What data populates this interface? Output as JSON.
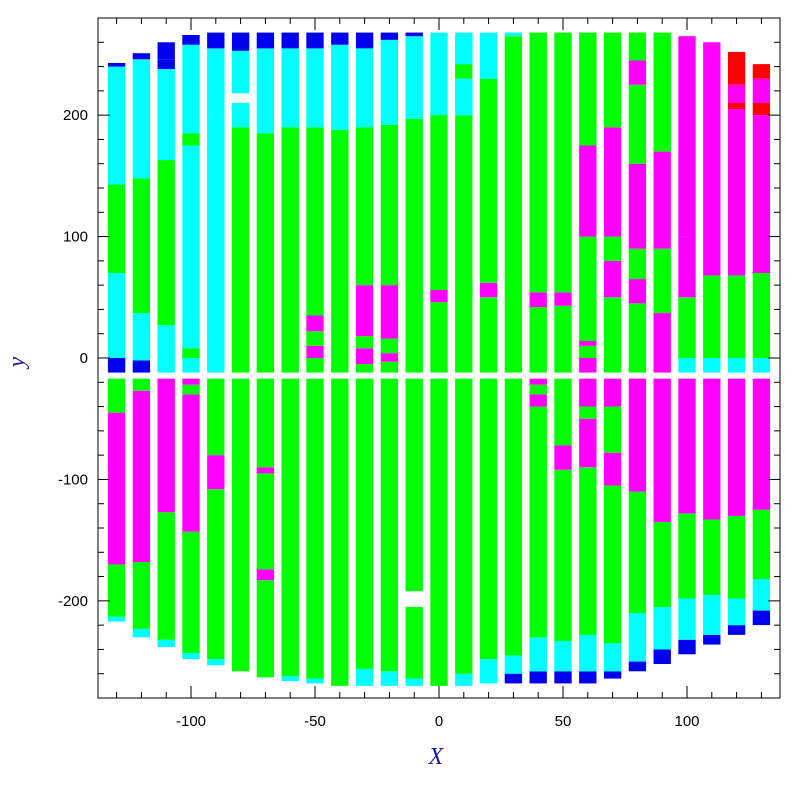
{
  "chart_data": {
    "type": "heatmap",
    "title": "",
    "xlabel": "X",
    "ylabel": "y",
    "xlim": [
      -137.5,
      137.5
    ],
    "ylim": [
      -280,
      280
    ],
    "xticks": [
      -100,
      -50,
      0,
      50,
      100
    ],
    "yticks": [
      -200,
      -100,
      0,
      100,
      200
    ],
    "grid": false,
    "colors": {
      "cyan": "#00ffff",
      "green": "#00ff00",
      "magenta": "#ff00ff",
      "blue": "#0000ee",
      "red": "#ff0000"
    },
    "strip_width": 7,
    "gap_band": [
      -17,
      -12
    ],
    "columns": [
      {
        "x": -130,
        "segments": [
          [
            -217,
            -213,
            "cyan"
          ],
          [
            -213,
            -170,
            "green"
          ],
          [
            -170,
            -45,
            "magenta"
          ],
          [
            -45,
            -17,
            "green"
          ],
          [
            -12,
            0,
            "blue"
          ],
          [
            0,
            70,
            "cyan"
          ],
          [
            70,
            143,
            "green"
          ],
          [
            143,
            240,
            "cyan"
          ],
          [
            240,
            243,
            "blue"
          ]
        ]
      },
      {
        "x": -120,
        "segments": [
          [
            -230,
            -223,
            "cyan"
          ],
          [
            -223,
            -168,
            "green"
          ],
          [
            -168,
            -27,
            "magenta"
          ],
          [
            -27,
            -17,
            "green"
          ],
          [
            -12,
            -2,
            "blue"
          ],
          [
            -2,
            37,
            "cyan"
          ],
          [
            37,
            148,
            "green"
          ],
          [
            148,
            246,
            "cyan"
          ],
          [
            246,
            251,
            "blue"
          ]
        ]
      },
      {
        "x": -110,
        "segments": [
          [
            -238,
            -232,
            "cyan"
          ],
          [
            -232,
            -127,
            "green"
          ],
          [
            -127,
            -17,
            "magenta"
          ],
          [
            -12,
            0,
            "cyan"
          ],
          [
            0,
            27,
            "cyan"
          ],
          [
            27,
            163,
            "green"
          ],
          [
            163,
            238,
            "cyan"
          ],
          [
            238,
            246,
            "blue"
          ],
          [
            246,
            260,
            "blue"
          ]
        ]
      },
      {
        "x": -100,
        "segments": [
          [
            -248,
            -243,
            "cyan"
          ],
          [
            -243,
            -143,
            "green"
          ],
          [
            -143,
            -30,
            "magenta"
          ],
          [
            -30,
            -22,
            "green"
          ],
          [
            -22,
            -17,
            "magenta"
          ],
          [
            -12,
            0,
            "cyan"
          ],
          [
            0,
            8,
            "green"
          ],
          [
            8,
            175,
            "cyan"
          ],
          [
            175,
            185,
            "green"
          ],
          [
            185,
            258,
            "cyan"
          ],
          [
            258,
            266,
            "blue"
          ]
        ]
      },
      {
        "x": -90,
        "segments": [
          [
            -253,
            -248,
            "cyan"
          ],
          [
            -248,
            -108,
            "green"
          ],
          [
            -108,
            -80,
            "magenta"
          ],
          [
            -80,
            -17,
            "green"
          ],
          [
            -12,
            200,
            "cyan"
          ],
          [
            200,
            255,
            "cyan"
          ],
          [
            255,
            268,
            "blue"
          ]
        ]
      },
      {
        "x": -80,
        "segments": [
          [
            -258,
            -17,
            "green"
          ],
          [
            -12,
            190,
            "green"
          ],
          [
            190,
            210,
            "cyan"
          ],
          [
            218,
            253,
            "cyan"
          ],
          [
            253,
            268,
            "blue"
          ]
        ]
      },
      {
        "x": -70,
        "segments": [
          [
            -263,
            -183,
            "green"
          ],
          [
            -183,
            -174,
            "magenta"
          ],
          [
            -174,
            -95,
            "green"
          ],
          [
            -95,
            -90,
            "magenta"
          ],
          [
            -90,
            -17,
            "green"
          ],
          [
            -12,
            185,
            "green"
          ],
          [
            185,
            255,
            "cyan"
          ],
          [
            255,
            268,
            "blue"
          ]
        ]
      },
      {
        "x": -60,
        "segments": [
          [
            -266,
            -262,
            "cyan"
          ],
          [
            -262,
            -17,
            "green"
          ],
          [
            -12,
            190,
            "green"
          ],
          [
            190,
            255,
            "cyan"
          ],
          [
            255,
            268,
            "blue"
          ]
        ]
      },
      {
        "x": -50,
        "segments": [
          [
            -268,
            -264,
            "cyan"
          ],
          [
            -264,
            -17,
            "green"
          ],
          [
            -12,
            0,
            "green"
          ],
          [
            0,
            10,
            "magenta"
          ],
          [
            10,
            22,
            "green"
          ],
          [
            22,
            35,
            "magenta"
          ],
          [
            35,
            190,
            "green"
          ],
          [
            190,
            255,
            "cyan"
          ],
          [
            255,
            268,
            "blue"
          ]
        ]
      },
      {
        "x": -40,
        "segments": [
          [
            -270,
            -17,
            "green"
          ],
          [
            -12,
            188,
            "green"
          ],
          [
            188,
            258,
            "cyan"
          ],
          [
            258,
            268,
            "blue"
          ]
        ]
      },
      {
        "x": -30,
        "segments": [
          [
            -270,
            -256,
            "cyan"
          ],
          [
            -256,
            -17,
            "green"
          ],
          [
            -12,
            -5,
            "green"
          ],
          [
            -5,
            8,
            "magenta"
          ],
          [
            8,
            18,
            "green"
          ],
          [
            18,
            60,
            "magenta"
          ],
          [
            60,
            190,
            "green"
          ],
          [
            190,
            255,
            "cyan"
          ],
          [
            255,
            268,
            "blue"
          ]
        ]
      },
      {
        "x": -20,
        "segments": [
          [
            -270,
            -258,
            "cyan"
          ],
          [
            -258,
            -17,
            "green"
          ],
          [
            -12,
            -3,
            "green"
          ],
          [
            -3,
            4,
            "magenta"
          ],
          [
            4,
            16,
            "green"
          ],
          [
            16,
            60,
            "magenta"
          ],
          [
            60,
            192,
            "green"
          ],
          [
            192,
            262,
            "cyan"
          ],
          [
            262,
            268,
            "blue"
          ]
        ]
      },
      {
        "x": -10,
        "segments": [
          [
            -270,
            -264,
            "cyan"
          ],
          [
            -264,
            -205,
            "green"
          ],
          [
            -192,
            -17,
            "green"
          ],
          [
            -12,
            197,
            "green"
          ],
          [
            197,
            265,
            "cyan"
          ],
          [
            265,
            268,
            "blue"
          ]
        ]
      },
      {
        "x": 0,
        "segments": [
          [
            -270,
            -17,
            "green"
          ],
          [
            -12,
            46,
            "green"
          ],
          [
            46,
            56,
            "magenta"
          ],
          [
            56,
            200,
            "green"
          ],
          [
            200,
            268,
            "cyan"
          ]
        ]
      },
      {
        "x": 10,
        "segments": [
          [
            -270,
            -260,
            "cyan"
          ],
          [
            -260,
            -17,
            "green"
          ],
          [
            -12,
            200,
            "green"
          ],
          [
            200,
            230,
            "cyan"
          ],
          [
            230,
            242,
            "green"
          ],
          [
            242,
            268,
            "cyan"
          ]
        ]
      },
      {
        "x": 20,
        "segments": [
          [
            -268,
            -248,
            "cyan"
          ],
          [
            -248,
            -17,
            "green"
          ],
          [
            -12,
            50,
            "green"
          ],
          [
            50,
            62,
            "magenta"
          ],
          [
            62,
            230,
            "green"
          ],
          [
            230,
            268,
            "cyan"
          ]
        ]
      },
      {
        "x": 30,
        "segments": [
          [
            -268,
            -260,
            "blue"
          ],
          [
            -260,
            -245,
            "cyan"
          ],
          [
            -245,
            -17,
            "green"
          ],
          [
            -12,
            265,
            "green"
          ],
          [
            265,
            268,
            "cyan"
          ]
        ]
      },
      {
        "x": 40,
        "segments": [
          [
            -268,
            -258,
            "blue"
          ],
          [
            -258,
            -230,
            "cyan"
          ],
          [
            -230,
            -40,
            "green"
          ],
          [
            -40,
            -30,
            "magenta"
          ],
          [
            -30,
            -22,
            "green"
          ],
          [
            -22,
            -17,
            "magenta"
          ],
          [
            -12,
            42,
            "green"
          ],
          [
            42,
            54,
            "magenta"
          ],
          [
            54,
            268,
            "green"
          ]
        ]
      },
      {
        "x": 50,
        "segments": [
          [
            -268,
            -258,
            "blue"
          ],
          [
            -258,
            -233,
            "cyan"
          ],
          [
            -233,
            -92,
            "green"
          ],
          [
            -92,
            -72,
            "magenta"
          ],
          [
            -72,
            -17,
            "green"
          ],
          [
            -12,
            43,
            "green"
          ],
          [
            43,
            54,
            "magenta"
          ],
          [
            54,
            268,
            "green"
          ]
        ]
      },
      {
        "x": 60,
        "segments": [
          [
            -268,
            -258,
            "blue"
          ],
          [
            -258,
            -228,
            "cyan"
          ],
          [
            -228,
            -90,
            "green"
          ],
          [
            -90,
            -50,
            "magenta"
          ],
          [
            -50,
            -40,
            "green"
          ],
          [
            -40,
            -17,
            "magenta"
          ],
          [
            -12,
            0,
            "magenta"
          ],
          [
            0,
            10,
            "green"
          ],
          [
            10,
            14,
            "magenta"
          ],
          [
            14,
            100,
            "green"
          ],
          [
            100,
            175,
            "magenta"
          ],
          [
            175,
            268,
            "green"
          ]
        ]
      },
      {
        "x": 70,
        "segments": [
          [
            -264,
            -258,
            "blue"
          ],
          [
            -258,
            -235,
            "cyan"
          ],
          [
            -235,
            -105,
            "green"
          ],
          [
            -105,
            -78,
            "magenta"
          ],
          [
            -78,
            -40,
            "green"
          ],
          [
            -40,
            -17,
            "magenta"
          ],
          [
            -12,
            50,
            "green"
          ],
          [
            50,
            80,
            "magenta"
          ],
          [
            80,
            100,
            "green"
          ],
          [
            100,
            190,
            "magenta"
          ],
          [
            190,
            268,
            "green"
          ]
        ]
      },
      {
        "x": 80,
        "segments": [
          [
            -258,
            -250,
            "blue"
          ],
          [
            -250,
            -210,
            "cyan"
          ],
          [
            -210,
            -110,
            "green"
          ],
          [
            -110,
            -17,
            "magenta"
          ],
          [
            -12,
            45,
            "green"
          ],
          [
            45,
            65,
            "magenta"
          ],
          [
            65,
            90,
            "green"
          ],
          [
            90,
            160,
            "magenta"
          ],
          [
            160,
            225,
            "green"
          ],
          [
            225,
            245,
            "magenta"
          ],
          [
            245,
            268,
            "green"
          ]
        ]
      },
      {
        "x": 90,
        "segments": [
          [
            -252,
            -240,
            "blue"
          ],
          [
            -240,
            -205,
            "cyan"
          ],
          [
            -205,
            -135,
            "green"
          ],
          [
            -135,
            -17,
            "magenta"
          ],
          [
            -12,
            37,
            "magenta"
          ],
          [
            37,
            90,
            "green"
          ],
          [
            90,
            170,
            "magenta"
          ],
          [
            170,
            268,
            "green"
          ]
        ]
      },
      {
        "x": 100,
        "segments": [
          [
            -244,
            -232,
            "blue"
          ],
          [
            -232,
            -198,
            "cyan"
          ],
          [
            -198,
            -128,
            "green"
          ],
          [
            -128,
            -17,
            "magenta"
          ],
          [
            -12,
            0,
            "cyan"
          ],
          [
            0,
            50,
            "green"
          ],
          [
            50,
            100,
            "magenta"
          ],
          [
            100,
            265,
            "magenta"
          ]
        ]
      },
      {
        "x": 110,
        "segments": [
          [
            -236,
            -228,
            "blue"
          ],
          [
            -228,
            -195,
            "cyan"
          ],
          [
            -195,
            -133,
            "green"
          ],
          [
            -133,
            -17,
            "magenta"
          ],
          [
            -12,
            0,
            "cyan"
          ],
          [
            0,
            68,
            "green"
          ],
          [
            68,
            260,
            "magenta"
          ]
        ]
      },
      {
        "x": 120,
        "segments": [
          [
            -228,
            -220,
            "blue"
          ],
          [
            -220,
            -198,
            "cyan"
          ],
          [
            -198,
            -130,
            "green"
          ],
          [
            -130,
            -17,
            "magenta"
          ],
          [
            -12,
            0,
            "cyan"
          ],
          [
            0,
            68,
            "green"
          ],
          [
            68,
            205,
            "magenta"
          ],
          [
            205,
            210,
            "red"
          ],
          [
            210,
            225,
            "magenta"
          ],
          [
            225,
            252,
            "red"
          ]
        ]
      },
      {
        "x": 130,
        "segments": [
          [
            -220,
            -208,
            "blue"
          ],
          [
            -208,
            -182,
            "cyan"
          ],
          [
            -182,
            -125,
            "green"
          ],
          [
            -125,
            -17,
            "magenta"
          ],
          [
            -12,
            0,
            "cyan"
          ],
          [
            0,
            70,
            "green"
          ],
          [
            70,
            200,
            "magenta"
          ],
          [
            200,
            210,
            "red"
          ],
          [
            210,
            230,
            "magenta"
          ],
          [
            230,
            242,
            "red"
          ]
        ]
      }
    ]
  }
}
